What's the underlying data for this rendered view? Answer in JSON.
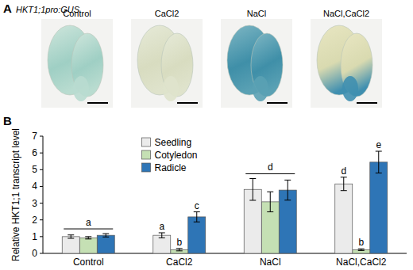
{
  "figure": {
    "panels": [
      {
        "label": "A",
        "title": "HKT1;1pro:GUS",
        "images": [
          "Control",
          "CaCl2",
          "NaCl",
          "NaCl,CaCl2"
        ]
      },
      {
        "label": "B"
      }
    ]
  },
  "chart_data": {
    "type": "bar",
    "y_label": "Relative HKT1;1 transcript level",
    "categories": [
      "Control",
      "CaCl2",
      "NaCl",
      "NaCl,CaCl2"
    ],
    "series": [
      {
        "name": "Seedling",
        "color": "#ebebeb",
        "values": [
          1.0,
          1.08,
          3.82,
          4.15
        ],
        "errors": [
          0.1,
          0.15,
          0.65,
          0.4
        ]
      },
      {
        "name": "Cotyledon",
        "color": "#c5e0b4",
        "values": [
          0.93,
          0.22,
          3.08,
          0.22
        ],
        "errors": [
          0.07,
          0.07,
          0.6,
          0.05
        ]
      },
      {
        "name": "Radicle",
        "color": "#2e75b6",
        "values": [
          1.08,
          2.18,
          3.78,
          5.45
        ],
        "errors": [
          0.1,
          0.3,
          0.6,
          0.65
        ]
      }
    ],
    "letters": [
      [
        "a"
      ],
      [
        "a",
        "b",
        "c"
      ],
      [
        "d"
      ],
      [
        "d",
        "b",
        "e"
      ]
    ],
    "ylim": [
      0,
      7
    ],
    "yticks": [
      0,
      1,
      2,
      3,
      4,
      5,
      6,
      7
    ],
    "grid": false,
    "legend": "upper-left"
  }
}
